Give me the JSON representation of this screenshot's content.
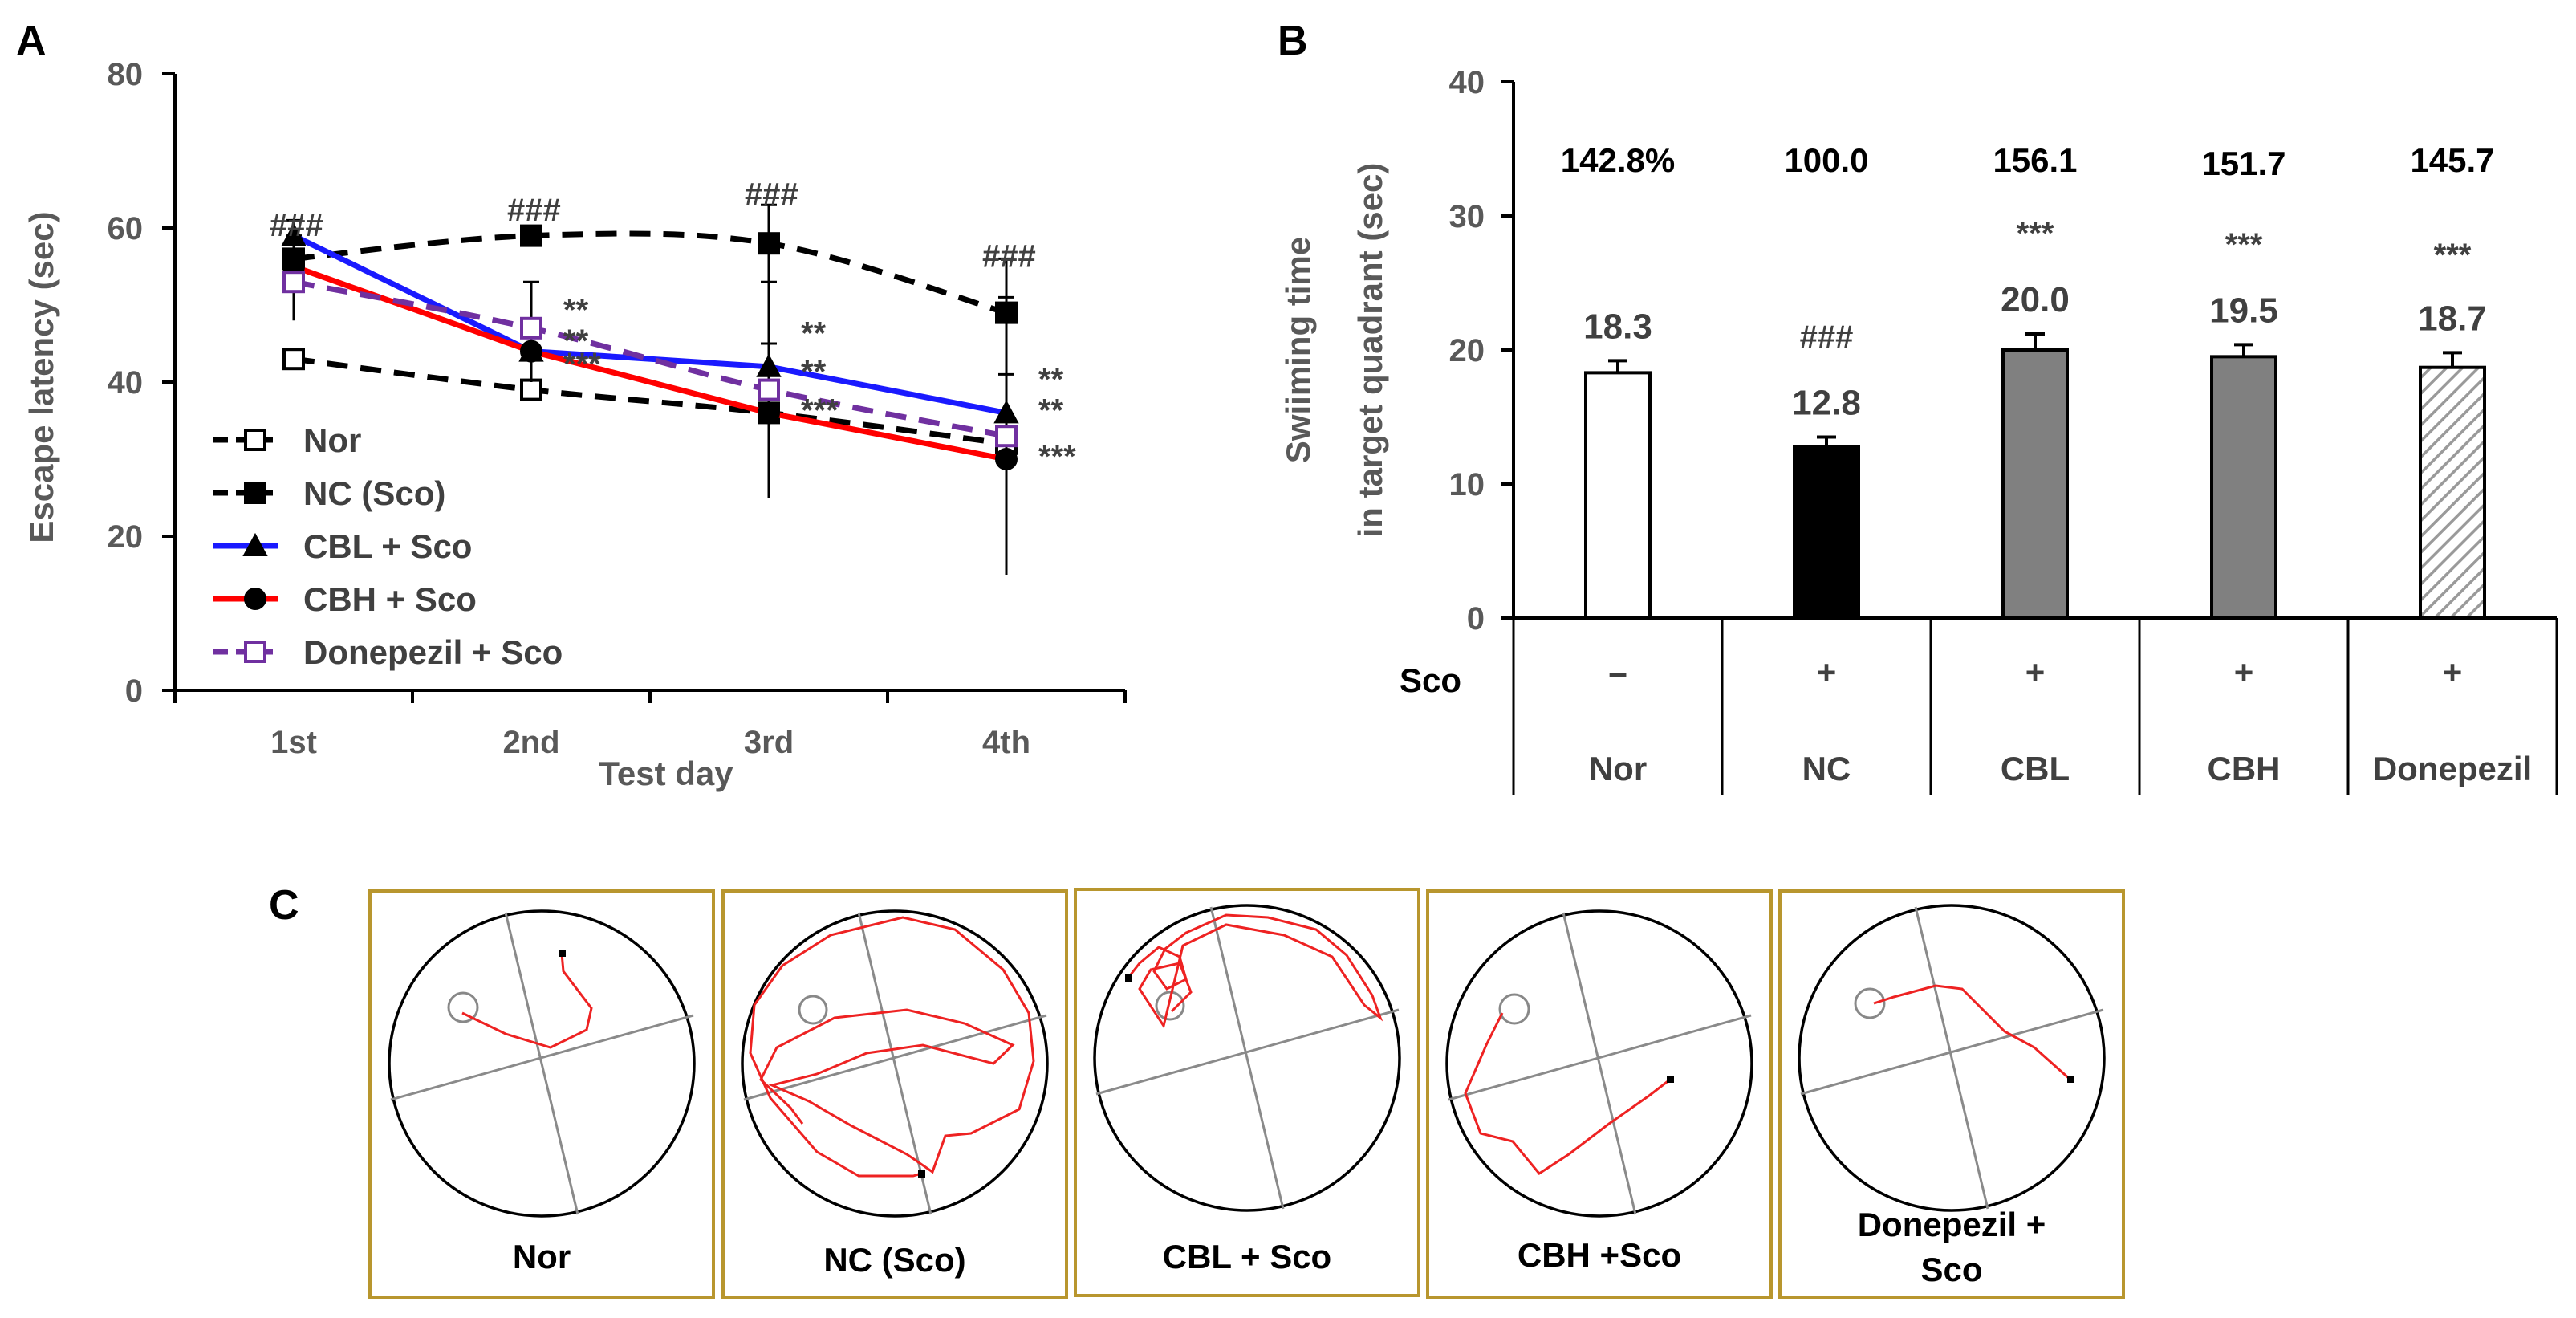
{
  "chart_data": [
    {
      "panel": "A",
      "type": "line",
      "xlabel": "Test day",
      "ylabel": "Escape latency (sec)",
      "categories": [
        "1st",
        "2nd",
        "3rd",
        "4th"
      ],
      "ylim": [
        0,
        80
      ],
      "yticks": [
        0,
        20,
        40,
        60,
        80
      ],
      "series": [
        {
          "name": "Nor",
          "color": "#000000",
          "dash": true,
          "marker": "square-open",
          "values": [
            43,
            39,
            36,
            32
          ],
          "err": [
            0,
            0,
            0,
            0
          ]
        },
        {
          "name": "NC (Sco)",
          "color": "#000000",
          "dash": true,
          "marker": "square",
          "values": [
            56,
            59,
            58,
            49
          ],
          "err": [
            3,
            1,
            5,
            7
          ]
        },
        {
          "name": "CBL + Sco",
          "color": "#1a1aff",
          "dash": false,
          "marker": "triangle",
          "values": [
            59,
            44,
            42,
            36
          ],
          "err": [
            2,
            2,
            3,
            5
          ]
        },
        {
          "name": "CBH + Sco",
          "color": "#ff0000",
          "dash": false,
          "marker": "circle",
          "values": [
            55,
            44,
            36,
            30
          ],
          "err": [
            3,
            4,
            4,
            3
          ]
        },
        {
          "name": "Donepezil + Sco",
          "color": "#7030a0",
          "dash": true,
          "marker": "square-open",
          "values": [
            53,
            47,
            39,
            33
          ],
          "err": [
            5,
            6,
            14,
            18
          ]
        }
      ],
      "annotations": [
        {
          "text": "###",
          "day": 0,
          "value": 60
        },
        {
          "text": "###",
          "day": 1,
          "value": 62
        },
        {
          "text": "###",
          "day": 2,
          "value": 64
        },
        {
          "text": "###",
          "day": 3,
          "value": 56
        },
        {
          "text": "**",
          "day": 1,
          "value": 49
        },
        {
          "text": "**",
          "day": 1,
          "value": 45
        },
        {
          "text": "***",
          "day": 1,
          "value": 42
        },
        {
          "text": "**",
          "day": 2,
          "value": 46
        },
        {
          "text": "**",
          "day": 2,
          "value": 41
        },
        {
          "text": "***",
          "day": 2,
          "value": 36
        },
        {
          "text": "**",
          "day": 3,
          "value": 40
        },
        {
          "text": "**",
          "day": 3,
          "value": 36
        },
        {
          "text": "***",
          "day": 3,
          "value": 30
        }
      ]
    },
    {
      "panel": "B",
      "type": "bar",
      "ylabel_line1": "Swiiming time",
      "ylabel_line2": "in target quadrant (sec)",
      "ylim": [
        0,
        40
      ],
      "yticks": [
        0,
        10,
        20,
        30,
        40
      ],
      "categories": [
        "Nor",
        "NC",
        "CBL",
        "CBH",
        "Donepezil"
      ],
      "values": [
        18.3,
        12.8,
        20.0,
        19.5,
        18.7
      ],
      "errors": [
        0.9,
        0.7,
        1.2,
        0.9,
        1.1
      ],
      "value_labels": [
        "18.3",
        "12.8",
        "20.0",
        "19.5",
        "18.7"
      ],
      "percent_labels": [
        "142.8%",
        "100.0",
        "156.1",
        "151.7",
        "145.7"
      ],
      "significance": [
        "",
        "###",
        "***",
        "***",
        "***"
      ],
      "sco_label": "Sco",
      "sco_row": [
        "–",
        "+",
        "+",
        "+",
        "+"
      ],
      "fills": [
        "white",
        "black",
        "gray",
        "gray",
        "hatched"
      ]
    }
  ],
  "panel_labels": {
    "a": "A",
    "b": "B",
    "c": "C"
  },
  "panel_c": {
    "labels": [
      "Nor",
      "NC (Sco)",
      "CBL  +  Sco",
      "CBH  +Sco",
      "Donepezil  +",
      "Sco"
    ]
  },
  "colors": {
    "frame": "#b8962e",
    "track": "#ee2222",
    "nor": "#000000",
    "cbl": "#1a1aff",
    "cbh": "#ff0000",
    "donepezil": "#7030a0"
  }
}
